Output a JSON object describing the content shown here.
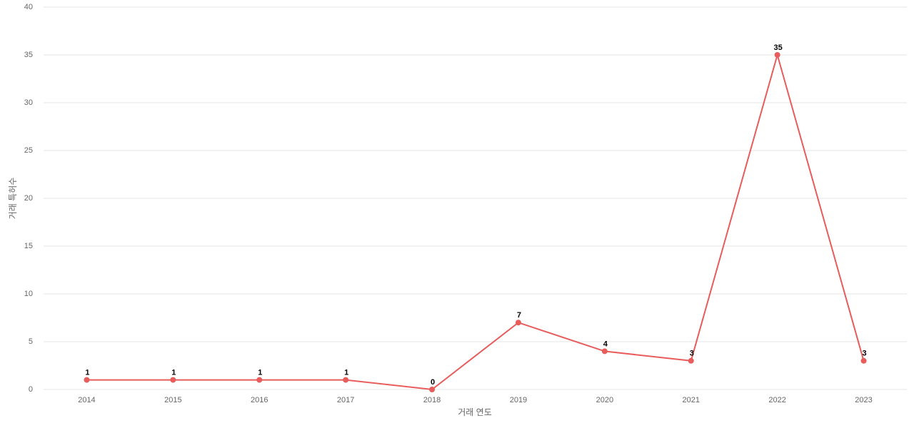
{
  "chart_data": {
    "type": "line",
    "x_label": "거래 연도",
    "y_label": "거래 특허수",
    "categories": [
      "2014",
      "2015",
      "2016",
      "2017",
      "2018",
      "2019",
      "2020",
      "2021",
      "2022",
      "2023"
    ],
    "series": [
      {
        "name": "거래 특허수",
        "color": "#e85c5c",
        "values": [
          1,
          1,
          1,
          1,
          0,
          7,
          4,
          3,
          35,
          3
        ]
      }
    ],
    "ylim": [
      0,
      40
    ],
    "yticks": [
      0,
      5,
      10,
      15,
      20,
      25,
      30,
      35,
      40
    ],
    "grid": true
  }
}
